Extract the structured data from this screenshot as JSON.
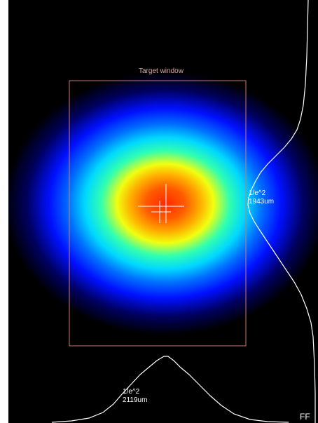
{
  "target_window": {
    "title": "Target window",
    "color": "#c97a72"
  },
  "vertical_profile": {
    "line1": "1/e^2",
    "line2": "1943um"
  },
  "horizontal_profile": {
    "line1": "1/e^2",
    "line2": "2119um"
  },
  "corner_tag": "FF",
  "colors": {
    "background": "#000000",
    "profile_line": "#ffffff",
    "crosshair": "#ffffff"
  }
}
